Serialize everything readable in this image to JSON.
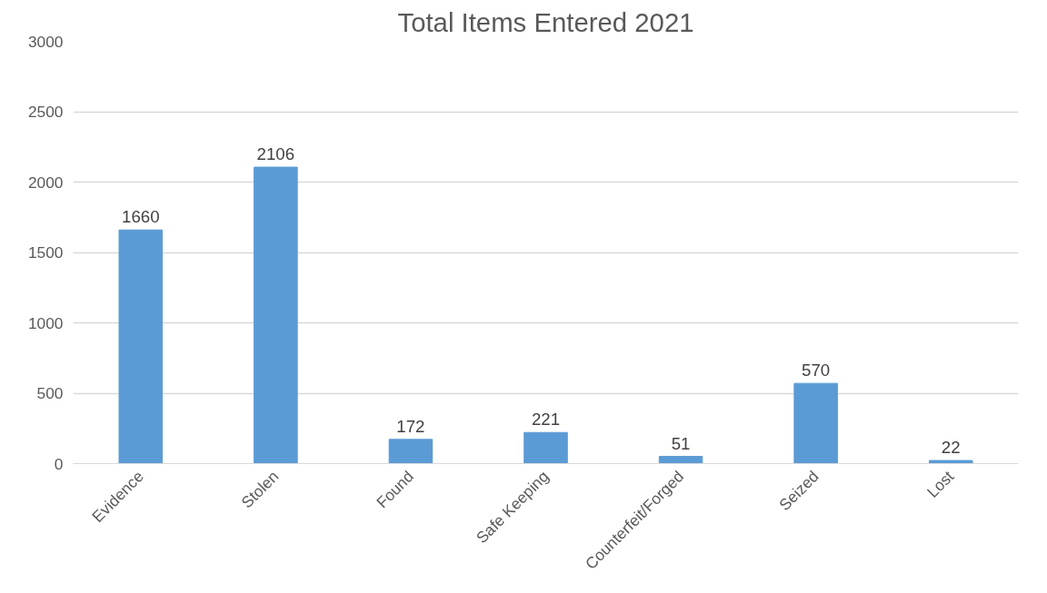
{
  "chart_data": {
    "type": "bar",
    "title": "Total Items Entered 2021",
    "categories": [
      "Evidence",
      "Stolen",
      "Found",
      "Safe Keeping",
      "Counterfeit/Forged",
      "Seized",
      "Lost"
    ],
    "values": [
      1660,
      2106,
      172,
      221,
      51,
      570,
      22
    ],
    "color": "#5b9bd5",
    "ylim": [
      0,
      3000
    ],
    "yticks": [
      0,
      500,
      1000,
      1500,
      2000,
      2500,
      3000
    ],
    "grid": "y",
    "data_labels": true
  }
}
